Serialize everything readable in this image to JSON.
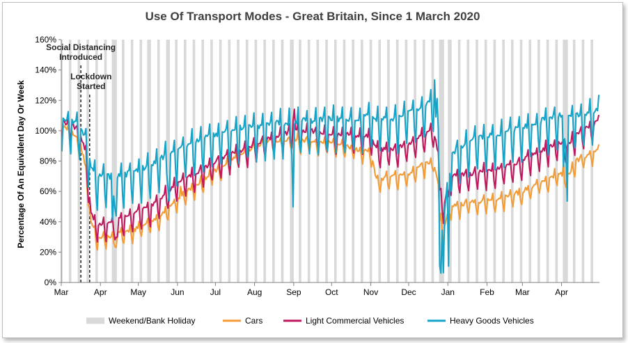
{
  "chart_data": {
    "type": "line",
    "title": "Use Of Transport Modes - Great Britain, Since 1 March 2020",
    "ylabel": "Percentage Of An Equivalent Day Or Week",
    "xlabel": "",
    "ylim": [
      0,
      160
    ],
    "yticks": [
      "0%",
      "20%",
      "40%",
      "60%",
      "80%",
      "100%",
      "120%",
      "140%",
      "160%"
    ],
    "x_axis": {
      "start": "2020-03-01",
      "end": "2021-04-30"
    },
    "xticks": [
      {
        "date": "2020-03-01",
        "label": "Mar"
      },
      {
        "date": "2020-04-01",
        "label": "Apr"
      },
      {
        "date": "2020-05-01",
        "label": "May"
      },
      {
        "date": "2020-06-01",
        "label": "Jun"
      },
      {
        "date": "2020-07-01",
        "label": "Jul"
      },
      {
        "date": "2020-08-01",
        "label": "Aug"
      },
      {
        "date": "2020-09-01",
        "label": "Sep"
      },
      {
        "date": "2020-10-01",
        "label": "Oct"
      },
      {
        "date": "2020-11-01",
        "label": "Nov"
      },
      {
        "date": "2020-12-01",
        "label": "Dec"
      },
      {
        "date": "2021-01-01",
        "label": "Jan"
      },
      {
        "date": "2021-02-01",
        "label": "Feb"
      },
      {
        "date": "2021-03-01",
        "label": "Mar"
      },
      {
        "date": "2021-04-01",
        "label": "Apr"
      }
    ],
    "annotations": [
      {
        "date": "2020-03-16",
        "label_lines": [
          "Social Distancing",
          "Introduced"
        ]
      },
      {
        "date": "2020-03-23",
        "label_lines": [
          "Lockdown",
          "Started"
        ]
      }
    ],
    "grid": false,
    "legend_position": "bottom",
    "shading": {
      "name": "Weekend/Bank Holiday",
      "color": "#d9d9d9",
      "bank_holidays": [
        "2020-04-10",
        "2020-04-13",
        "2020-05-08",
        "2020-05-25",
        "2020-08-31",
        "2020-12-25",
        "2020-12-28",
        "2021-01-01",
        "2021-04-02",
        "2021-04-05"
      ]
    },
    "series": [
      {
        "name": "Cars",
        "color": "#f39c36",
        "anchors": [
          [
            "2020-03-01",
            103
          ],
          [
            "2020-03-09",
            100
          ],
          [
            "2020-03-16",
            90
          ],
          [
            "2020-03-20",
            75
          ],
          [
            "2020-03-24",
            40
          ],
          [
            "2020-03-29",
            30
          ],
          [
            "2020-04-10",
            31
          ],
          [
            "2020-04-25",
            34
          ],
          [
            "2020-05-10",
            40
          ],
          [
            "2020-05-20",
            45
          ],
          [
            "2020-06-01",
            56
          ],
          [
            "2020-06-15",
            64
          ],
          [
            "2020-07-01",
            74
          ],
          [
            "2020-07-20",
            85
          ],
          [
            "2020-08-10",
            93
          ],
          [
            "2020-08-31",
            94
          ],
          [
            "2020-09-15",
            93
          ],
          [
            "2020-10-01",
            92
          ],
          [
            "2020-10-20",
            88
          ],
          [
            "2020-11-01",
            85
          ],
          [
            "2020-11-05",
            68
          ],
          [
            "2020-11-20",
            70
          ],
          [
            "2020-12-02",
            72
          ],
          [
            "2020-12-10",
            77
          ],
          [
            "2020-12-20",
            80
          ],
          [
            "2020-12-24",
            65
          ],
          [
            "2020-12-28",
            35
          ],
          [
            "2021-01-02",
            50
          ],
          [
            "2021-01-05",
            50
          ],
          [
            "2021-01-20",
            53
          ],
          [
            "2021-02-10",
            55
          ],
          [
            "2021-02-28",
            60
          ],
          [
            "2021-03-10",
            64
          ],
          [
            "2021-03-29",
            72
          ],
          [
            "2021-04-05",
            70
          ],
          [
            "2021-04-12",
            80
          ],
          [
            "2021-04-30",
            88
          ]
        ],
        "spikes": [
          [
            "2020-04-13",
            -8
          ],
          [
            "2020-06-03",
            5
          ],
          [
            "2020-08-31",
            10
          ],
          [
            "2020-09-04",
            5
          ],
          [
            "2020-12-25",
            -20
          ],
          [
            "2020-12-28",
            -12
          ],
          [
            "2021-01-01",
            -12
          ],
          [
            "2021-04-02",
            5
          ]
        ],
        "weekend_offset": -8,
        "noise": 3
      },
      {
        "name": "Light Commercial Vehicles",
        "color": "#c0185f",
        "anchors": [
          [
            "2020-03-01",
            106
          ],
          [
            "2020-03-09",
            104
          ],
          [
            "2020-03-16",
            97
          ],
          [
            "2020-03-20",
            85
          ],
          [
            "2020-03-24",
            45
          ],
          [
            "2020-03-29",
            38
          ],
          [
            "2020-04-10",
            40
          ],
          [
            "2020-04-25",
            45
          ],
          [
            "2020-05-10",
            50
          ],
          [
            "2020-05-20",
            57
          ],
          [
            "2020-06-01",
            66
          ],
          [
            "2020-06-15",
            72
          ],
          [
            "2020-07-01",
            80
          ],
          [
            "2020-07-20",
            87
          ],
          [
            "2020-08-10",
            94
          ],
          [
            "2020-08-31",
            100
          ],
          [
            "2020-09-15",
            100
          ],
          [
            "2020-10-01",
            98
          ],
          [
            "2020-10-20",
            97
          ],
          [
            "2020-11-01",
            96
          ],
          [
            "2020-11-05",
            88
          ],
          [
            "2020-11-20",
            88
          ],
          [
            "2020-12-02",
            92
          ],
          [
            "2020-12-10",
            96
          ],
          [
            "2020-12-20",
            100
          ],
          [
            "2020-12-24",
            85
          ],
          [
            "2020-12-28",
            50
          ],
          [
            "2021-01-02",
            70
          ],
          [
            "2021-01-05",
            70
          ],
          [
            "2021-01-20",
            72
          ],
          [
            "2021-02-10",
            75
          ],
          [
            "2021-02-28",
            80
          ],
          [
            "2021-03-10",
            85
          ],
          [
            "2021-03-29",
            92
          ],
          [
            "2021-04-05",
            90
          ],
          [
            "2021-04-12",
            98
          ],
          [
            "2021-04-30",
            106
          ]
        ],
        "spikes": [
          [
            "2020-04-13",
            -10
          ],
          [
            "2020-04-14",
            -12
          ],
          [
            "2020-08-31",
            6
          ],
          [
            "2020-09-01",
            14
          ],
          [
            "2020-12-25",
            -20
          ],
          [
            "2020-12-28",
            -12
          ],
          [
            "2021-01-01",
            -14
          ]
        ],
        "weekend_offset": -12,
        "noise": 3
      },
      {
        "name": "Heavy Goods Vehicles",
        "color": "#15a3c7",
        "anchors": [
          [
            "2020-03-01",
            108
          ],
          [
            "2020-03-09",
            106
          ],
          [
            "2020-03-16",
            103
          ],
          [
            "2020-03-20",
            95
          ],
          [
            "2020-03-24",
            75
          ],
          [
            "2020-03-29",
            70
          ],
          [
            "2020-04-10",
            70
          ],
          [
            "2020-04-25",
            72
          ],
          [
            "2020-05-10",
            78
          ],
          [
            "2020-05-20",
            83
          ],
          [
            "2020-06-01",
            88
          ],
          [
            "2020-06-15",
            93
          ],
          [
            "2020-07-01",
            98
          ],
          [
            "2020-07-20",
            102
          ],
          [
            "2020-08-10",
            104
          ],
          [
            "2020-08-31",
            106
          ],
          [
            "2020-09-15",
            107
          ],
          [
            "2020-10-01",
            108
          ],
          [
            "2020-10-20",
            108
          ],
          [
            "2020-11-01",
            110
          ],
          [
            "2020-11-05",
            108
          ],
          [
            "2020-11-20",
            108
          ],
          [
            "2020-12-02",
            113
          ],
          [
            "2020-12-10",
            115
          ],
          [
            "2020-12-20",
            120
          ],
          [
            "2020-12-24",
            100
          ],
          [
            "2020-12-28",
            40
          ],
          [
            "2021-01-02",
            82
          ],
          [
            "2021-01-05",
            86
          ],
          [
            "2021-01-20",
            95
          ],
          [
            "2021-02-10",
            98
          ],
          [
            "2021-02-28",
            102
          ],
          [
            "2021-03-10",
            105
          ],
          [
            "2021-03-29",
            110
          ],
          [
            "2021-04-05",
            108
          ],
          [
            "2021-04-12",
            110
          ],
          [
            "2021-04-30",
            114
          ]
        ],
        "spikes": [
          [
            "2020-04-10",
            -35
          ],
          [
            "2020-04-13",
            -25
          ],
          [
            "2020-05-25",
            -30
          ],
          [
            "2020-08-31",
            -55
          ],
          [
            "2020-12-21",
            20
          ],
          [
            "2020-12-23",
            15
          ],
          [
            "2020-12-25",
            -80
          ],
          [
            "2020-12-26",
            -50
          ],
          [
            "2020-12-28",
            -35
          ],
          [
            "2021-01-01",
            -70
          ],
          [
            "2021-04-02",
            -40
          ],
          [
            "2021-04-05",
            -55
          ]
        ],
        "weekend_offset": -22,
        "noise": 4
      }
    ]
  }
}
